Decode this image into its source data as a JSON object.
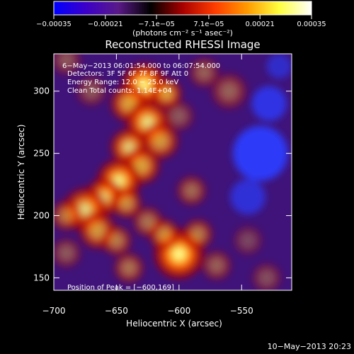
{
  "chart_data": {
    "type": "heatmap",
    "title": "Reconstructed RHESSI Image",
    "xlabel": "Heliocentric X (arcsec)",
    "ylabel": "Heliocentric Y (arcsec)",
    "xlim": [
      -700,
      -510
    ],
    "ylim": [
      140,
      330
    ],
    "xticks": [
      -700,
      -650,
      -600,
      -550
    ],
    "yticks": [
      150,
      200,
      250,
      300
    ],
    "xtick_labels": [
      "−700",
      "−650",
      "−600",
      "−550"
    ],
    "ytick_labels": [
      "150",
      "200",
      "250",
      "300"
    ],
    "colorbar": {
      "min": -0.00035,
      "max": 0.00035,
      "ticks": [
        -0.00035,
        -0.00021,
        -7.1e-05,
        7.1e-05,
        0.00021,
        0.00035
      ],
      "tick_labels": [
        "−0.00035",
        "−0.00021",
        "−7.1e−05",
        "7.1e−05",
        "0.00021",
        "0.00035"
      ],
      "unit_label": "(photons cm⁻² s⁻¹ asec⁻²)",
      "stops": [
        "#0000ff",
        "#3c00c8",
        "#5a1a88",
        "#000000",
        "#a80000",
        "#ff3c00",
        "#ff9a00",
        "#ffff40",
        "#ffffff"
      ]
    },
    "annotations": [
      "6−May−2013 06:01:54.000 to 06:07:54.000",
      "Detectors: 3F 5F 6F 7F 8F 9F  Att 0",
      "Energy Range: 12.0 − 25.0 keV",
      "Clean     Total counts: 1.14E+04"
    ],
    "peak_label": "Position of Peak = [−600,169]",
    "peak": [
      -600,
      169
    ],
    "timestamp": "10−May−2013 20:23",
    "bright_sources": [
      {
        "x": -628,
        "y": 305,
        "s": 14,
        "a": 1.0
      },
      {
        "x": -610,
        "y": 298,
        "s": 10,
        "a": 0.8
      },
      {
        "x": -640,
        "y": 290,
        "s": 12,
        "a": 0.8
      },
      {
        "x": -625,
        "y": 275,
        "s": 14,
        "a": 0.9
      },
      {
        "x": -615,
        "y": 260,
        "s": 12,
        "a": 0.75
      },
      {
        "x": -640,
        "y": 255,
        "s": 12,
        "a": 0.85
      },
      {
        "x": -630,
        "y": 240,
        "s": 12,
        "a": 0.8
      },
      {
        "x": -648,
        "y": 228,
        "s": 14,
        "a": 0.95
      },
      {
        "x": -660,
        "y": 215,
        "s": 12,
        "a": 0.85
      },
      {
        "x": -642,
        "y": 210,
        "s": 10,
        "a": 0.7
      },
      {
        "x": -675,
        "y": 205,
        "s": 14,
        "a": 0.85
      },
      {
        "x": -690,
        "y": 200,
        "s": 10,
        "a": 0.6
      },
      {
        "x": -665,
        "y": 188,
        "s": 12,
        "a": 0.75
      },
      {
        "x": -650,
        "y": 180,
        "s": 10,
        "a": 0.6
      },
      {
        "x": -600,
        "y": 169,
        "s": 16,
        "a": 1.0
      },
      {
        "x": -612,
        "y": 185,
        "s": 10,
        "a": 0.7
      },
      {
        "x": -585,
        "y": 185,
        "s": 10,
        "a": 0.6
      },
      {
        "x": -625,
        "y": 195,
        "s": 10,
        "a": 0.55
      },
      {
        "x": -590,
        "y": 220,
        "s": 10,
        "a": 0.5
      },
      {
        "x": -560,
        "y": 300,
        "s": 12,
        "a": 0.45
      },
      {
        "x": -580,
        "y": 315,
        "s": 10,
        "a": 0.45
      },
      {
        "x": -600,
        "y": 280,
        "s": 10,
        "a": 0.4
      },
      {
        "x": -570,
        "y": 160,
        "s": 10,
        "a": 0.45
      },
      {
        "x": -640,
        "y": 158,
        "s": 10,
        "a": 0.55
      },
      {
        "x": -690,
        "y": 170,
        "s": 10,
        "a": 0.4
      },
      {
        "x": -530,
        "y": 150,
        "s": 10,
        "a": 0.35
      },
      {
        "x": -545,
        "y": 180,
        "s": 10,
        "a": 0.3
      },
      {
        "x": -670,
        "y": 300,
        "s": 10,
        "a": 0.4
      },
      {
        "x": -690,
        "y": 325,
        "s": 10,
        "a": 0.4
      }
    ],
    "negative_regions": [
      {
        "x": -535,
        "y": 250,
        "s": 22,
        "a": 0.95
      },
      {
        "x": -528,
        "y": 290,
        "s": 14,
        "a": 0.8
      },
      {
        "x": -545,
        "y": 215,
        "s": 14,
        "a": 0.7
      },
      {
        "x": -520,
        "y": 320,
        "s": 10,
        "a": 0.6
      }
    ]
  }
}
